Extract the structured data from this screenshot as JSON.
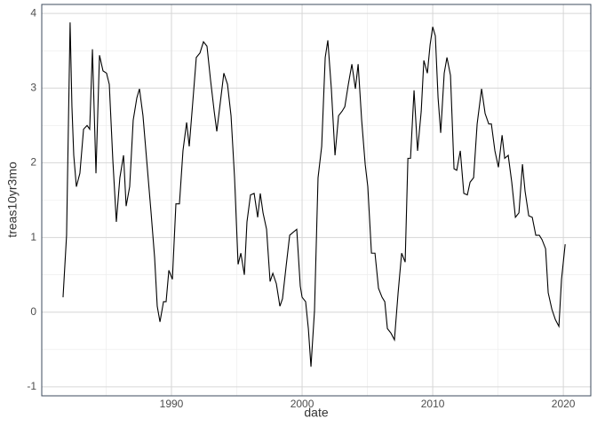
{
  "chart_data": {
    "type": "line",
    "x_label": "date",
    "y_label": "treas10yr3mo",
    "xlim": [
      1980.07,
      2022.1
    ],
    "ylim": [
      -1.12,
      4.12
    ],
    "xticks": [
      1990,
      2000,
      2010,
      2020
    ],
    "yticks": [
      -1,
      0,
      1,
      2,
      3,
      4
    ],
    "x_minor_ticks": [
      1985,
      1995,
      2005,
      2015
    ],
    "y_minor_ticks": [
      -0.5,
      0.5,
      1.5,
      2.5,
      3.5
    ],
    "grid": true,
    "series": [
      {
        "name": "treas10yr3mo",
        "color": "#000000",
        "x": [
          1981.7,
          1981.97,
          1982.24,
          1982.38,
          1982.52,
          1982.72,
          1982.99,
          1983.27,
          1983.54,
          1983.74,
          1983.95,
          1984.22,
          1984.49,
          1984.76,
          1985.03,
          1985.24,
          1985.51,
          1985.78,
          1986.05,
          1986.33,
          1986.53,
          1986.8,
          1987.07,
          1987.35,
          1987.55,
          1987.82,
          1988.1,
          1988.44,
          1988.71,
          1988.91,
          1989.12,
          1989.39,
          1989.59,
          1989.8,
          1990.07,
          1990.34,
          1990.61,
          1990.88,
          1991.16,
          1991.36,
          1991.63,
          1991.9,
          1992.18,
          1992.45,
          1992.72,
          1992.99,
          1993.27,
          1993.47,
          1993.74,
          1994.01,
          1994.29,
          1994.56,
          1994.83,
          1995.1,
          1995.31,
          1995.58,
          1995.78,
          1996.05,
          1996.33,
          1996.6,
          1996.8,
          1997.01,
          1997.28,
          1997.55,
          1997.76,
          1998.03,
          1998.3,
          1998.5,
          1998.78,
          1999.05,
          1999.32,
          1999.59,
          1999.86,
          2000.0,
          2000.27,
          2000.48,
          2000.68,
          2000.95,
          2001.22,
          2001.5,
          2001.77,
          2001.97,
          2002.24,
          2002.52,
          2002.79,
          2003.06,
          2003.27,
          2003.54,
          2003.81,
          2004.08,
          2004.29,
          2004.56,
          2004.83,
          2005.03,
          2005.31,
          2005.58,
          2005.85,
          2006.12,
          2006.33,
          2006.53,
          2006.8,
          2007.07,
          2007.35,
          2007.62,
          2007.89,
          2008.1,
          2008.3,
          2008.57,
          2008.84,
          2009.12,
          2009.32,
          2009.59,
          2009.8,
          2010.0,
          2010.2,
          2010.41,
          2010.61,
          2010.88,
          2011.09,
          2011.36,
          2011.63,
          2011.84,
          2012.11,
          2012.38,
          2012.65,
          2012.86,
          2013.13,
          2013.4,
          2013.74,
          2014.01,
          2014.29,
          2014.49,
          2014.76,
          2015.03,
          2015.31,
          2015.51,
          2015.78,
          2016.05,
          2016.33,
          2016.6,
          2016.87,
          2017.07,
          2017.35,
          2017.62,
          2017.89,
          2018.16,
          2018.37,
          2018.64,
          2018.84,
          2019.12,
          2019.39,
          2019.66,
          2019.86,
          2020.14
        ],
        "values": [
          0.2,
          1.03,
          3.88,
          2.75,
          2.1,
          1.68,
          1.86,
          2.45,
          2.5,
          2.45,
          3.52,
          1.86,
          3.44,
          3.23,
          3.2,
          3.05,
          2.04,
          1.21,
          1.8,
          2.1,
          1.42,
          1.68,
          2.57,
          2.87,
          2.99,
          2.63,
          2.04,
          1.33,
          0.73,
          0.08,
          -0.13,
          0.14,
          0.14,
          0.56,
          0.44,
          1.45,
          1.45,
          2.16,
          2.54,
          2.22,
          2.81,
          3.41,
          3.47,
          3.62,
          3.56,
          3.11,
          2.69,
          2.42,
          2.81,
          3.2,
          3.05,
          2.63,
          1.8,
          0.64,
          0.79,
          0.5,
          1.21,
          1.57,
          1.59,
          1.27,
          1.59,
          1.33,
          1.11,
          0.41,
          0.52,
          0.38,
          0.08,
          0.18,
          0.62,
          1.03,
          1.07,
          1.11,
          0.35,
          0.2,
          0.14,
          -0.22,
          -0.73,
          0.02,
          1.8,
          2.22,
          3.41,
          3.64,
          2.99,
          2.1,
          2.63,
          2.69,
          2.75,
          3.05,
          3.32,
          2.99,
          3.32,
          2.57,
          1.98,
          1.68,
          0.79,
          0.79,
          0.32,
          0.2,
          0.14,
          -0.22,
          -0.28,
          -0.37,
          0.26,
          0.79,
          0.67,
          2.06,
          2.06,
          2.97,
          2.16,
          2.69,
          3.37,
          3.2,
          3.58,
          3.82,
          3.7,
          2.87,
          2.4,
          3.2,
          3.41,
          3.17,
          1.92,
          1.9,
          2.16,
          1.59,
          1.57,
          1.74,
          1.8,
          2.52,
          2.99,
          2.66,
          2.52,
          2.52,
          2.16,
          1.94,
          2.37,
          2.06,
          2.1,
          1.74,
          1.27,
          1.33,
          1.98,
          1.62,
          1.29,
          1.27,
          1.03,
          1.03,
          0.97,
          0.85,
          0.26,
          0.04,
          -0.1,
          -0.19,
          0.44,
          0.91
        ]
      }
    ]
  }
}
